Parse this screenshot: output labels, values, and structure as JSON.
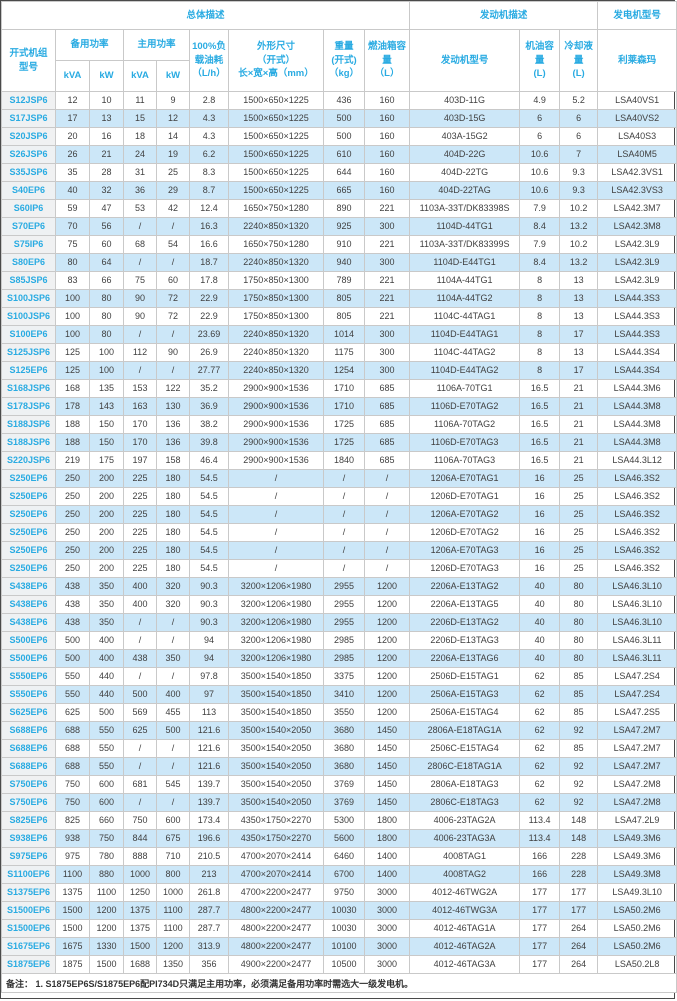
{
  "header": {
    "group_overall": "总体描述",
    "group_engine": "发动机描述",
    "group_alternator": "发电机型号",
    "col_model": [
      "开式机组",
      "型号"
    ],
    "col_standby_power": "备用功率",
    "col_prime_power": "主用功率",
    "unit_kva": "kVA",
    "unit_kw": "kW",
    "col_fuel_consumption": [
      "100%负",
      "载油耗",
      "（L/h）"
    ],
    "col_dimensions": [
      "外形尺寸",
      "（开式）",
      "长×宽×高（mm）"
    ],
    "col_weight": [
      "重量",
      "(开式)",
      "（kg）"
    ],
    "col_fuel_tank": [
      "燃油箱容",
      "量",
      "（L）"
    ],
    "col_engine_model": "发动机型号",
    "col_oil_capacity": [
      "机油容量",
      "(L)"
    ],
    "col_coolant_capacity": [
      "冷却液量",
      "(L)"
    ],
    "col_leroy_somer": "利莱森玛"
  },
  "colors": {
    "accent": "#29abe2",
    "stripe": "#cce7f8",
    "model_col_bg": "#f0f1f2",
    "border": "#c9c9c9"
  },
  "table": {
    "rows": [
      [
        "S12JSP6",
        "12",
        "10",
        "11",
        "9",
        "2.8",
        "1500×650×1225",
        "436",
        "160",
        "403D-11G",
        "4.9",
        "5.2",
        "LSA40VS1"
      ],
      [
        "S17JSP6",
        "17",
        "13",
        "15",
        "12",
        "4.3",
        "1500×650×1225",
        "500",
        "160",
        "403D-15G",
        "6",
        "6",
        "LSA40VS2"
      ],
      [
        "S20JSP6",
        "20",
        "16",
        "18",
        "14",
        "4.3",
        "1500×650×1225",
        "500",
        "160",
        "403A-15G2",
        "6",
        "6",
        "LSA40S3"
      ],
      [
        "S26JSP6",
        "26",
        "21",
        "24",
        "19",
        "6.2",
        "1500×650×1225",
        "610",
        "160",
        "404D-22G",
        "10.6",
        "7",
        "LSA40M5"
      ],
      [
        "S35JSP6",
        "35",
        "28",
        "31",
        "25",
        "8.3",
        "1500×650×1225",
        "644",
        "160",
        "404D-22TG",
        "10.6",
        "9.3",
        "LSA42.3VS1"
      ],
      [
        "S40EP6",
        "40",
        "32",
        "36",
        "29",
        "8.7",
        "1500×650×1225",
        "665",
        "160",
        "404D-22TAG",
        "10.6",
        "9.3",
        "LSA42.3VS3"
      ],
      [
        "S60IP6",
        "59",
        "47",
        "53",
        "42",
        "12.4",
        "1650×750×1280",
        "890",
        "221",
        "1103A-33T/DK83398S",
        "7.9",
        "10.2",
        "LSA42.3M7"
      ],
      [
        "S70EP6",
        "70",
        "56",
        "/",
        "/",
        "16.3",
        "2240×850×1320",
        "925",
        "300",
        "1104D-44TG1",
        "8.4",
        "13.2",
        "LSA42.3M8"
      ],
      [
        "S75IP6",
        "75",
        "60",
        "68",
        "54",
        "16.6",
        "1650×750×1280",
        "910",
        "221",
        "1103A-33T/DK83399S",
        "7.9",
        "10.2",
        "LSA42.3L9"
      ],
      [
        "S80EP6",
        "80",
        "64",
        "/",
        "/",
        "18.7",
        "2240×850×1320",
        "940",
        "300",
        "1104D-E44TG1",
        "8.4",
        "13.2",
        "LSA42.3L9"
      ],
      [
        "S85JSP6",
        "83",
        "66",
        "75",
        "60",
        "17.8",
        "1750×850×1300",
        "789",
        "221",
        "1104A-44TG1",
        "8",
        "13",
        "LSA42.3L9"
      ],
      [
        "S100JSP6",
        "100",
        "80",
        "90",
        "72",
        "22.9",
        "1750×850×1300",
        "805",
        "221",
        "1104A-44TG2",
        "8",
        "13",
        "LSA44.3S3"
      ],
      [
        "S100JSP6",
        "100",
        "80",
        "90",
        "72",
        "22.9",
        "1750×850×1300",
        "805",
        "221",
        "1104C-44TAG1",
        "8",
        "13",
        "LSA44.3S3"
      ],
      [
        "S100EP6",
        "100",
        "80",
        "/",
        "/",
        "23.69",
        "2240×850×1320",
        "1014",
        "300",
        "1104D-E44TAG1",
        "8",
        "17",
        "LSA44.3S3"
      ],
      [
        "S125JSP6",
        "125",
        "100",
        "112",
        "90",
        "26.9",
        "2240×850×1320",
        "1175",
        "300",
        "1104C-44TAG2",
        "8",
        "13",
        "LSA44.3S4"
      ],
      [
        "S125EP6",
        "125",
        "100",
        "/",
        "/",
        "27.77",
        "2240×850×1320",
        "1254",
        "300",
        "1104D-E44TAG2",
        "8",
        "17",
        "LSA44.3S4"
      ],
      [
        "S168JSP6",
        "168",
        "135",
        "153",
        "122",
        "35.2",
        "2900×900×1536",
        "1710",
        "685",
        "1106A-70TG1",
        "16.5",
        "21",
        "LSA44.3M6"
      ],
      [
        "S178JSP6",
        "178",
        "143",
        "163",
        "130",
        "36.9",
        "2900×900×1536",
        "1710",
        "685",
        "1106D-E70TAG2",
        "16.5",
        "21",
        "LSA44.3M8"
      ],
      [
        "S188JSP6",
        "188",
        "150",
        "170",
        "136",
        "38.2",
        "2900×900×1536",
        "1725",
        "685",
        "1106A-70TAG2",
        "16.5",
        "21",
        "LSA44.3M8"
      ],
      [
        "S188JSP6",
        "188",
        "150",
        "170",
        "136",
        "39.8",
        "2900×900×1536",
        "1725",
        "685",
        "1106D-E70TAG3",
        "16.5",
        "21",
        "LSA44.3M8"
      ],
      [
        "S220JSP6",
        "219",
        "175",
        "197",
        "158",
        "46.4",
        "2900×900×1536",
        "1840",
        "685",
        "1106A-70TAG3",
        "16.5",
        "21",
        "LSA44.3L12"
      ],
      [
        "S250EP6",
        "250",
        "200",
        "225",
        "180",
        "54.5",
        "/",
        "/",
        "/",
        "1206A-E70TAG1",
        "16",
        "25",
        "LSA46.3S2"
      ],
      [
        "S250EP6",
        "250",
        "200",
        "225",
        "180",
        "54.5",
        "/",
        "/",
        "/",
        "1206D-E70TAG1",
        "16",
        "25",
        "LSA46.3S2"
      ],
      [
        "S250EP6",
        "250",
        "200",
        "225",
        "180",
        "54.5",
        "/",
        "/",
        "/",
        "1206A-E70TAG2",
        "16",
        "25",
        "LSA46.3S2"
      ],
      [
        "S250EP6",
        "250",
        "200",
        "225",
        "180",
        "54.5",
        "/",
        "/",
        "/",
        "1206D-E70TAG2",
        "16",
        "25",
        "LSA46.3S2"
      ],
      [
        "S250EP6",
        "250",
        "200",
        "225",
        "180",
        "54.5",
        "/",
        "/",
        "/",
        "1206A-E70TAG3",
        "16",
        "25",
        "LSA46.3S2"
      ],
      [
        "S250EP6",
        "250",
        "200",
        "225",
        "180",
        "54.5",
        "/",
        "/",
        "/",
        "1206D-E70TAG3",
        "16",
        "25",
        "LSA46.3S2"
      ],
      [
        "S438EP6",
        "438",
        "350",
        "400",
        "320",
        "90.3",
        "3200×1206×1980",
        "2955",
        "1200",
        "2206A-E13TAG2",
        "40",
        "80",
        "LSA46.3L10"
      ],
      [
        "S438EP6",
        "438",
        "350",
        "400",
        "320",
        "90.3",
        "3200×1206×1980",
        "2955",
        "1200",
        "2206A-E13TAG5",
        "40",
        "80",
        "LSA46.3L10"
      ],
      [
        "S438EP6",
        "438",
        "350",
        "/",
        "/",
        "90.3",
        "3200×1206×1980",
        "2955",
        "1200",
        "2206D-E13TAG2",
        "40",
        "80",
        "LSA46.3L10"
      ],
      [
        "S500EP6",
        "500",
        "400",
        "/",
        "/",
        "94",
        "3200×1206×1980",
        "2985",
        "1200",
        "2206D-E13TAG3",
        "40",
        "80",
        "LSA46.3L11"
      ],
      [
        "S500EP6",
        "500",
        "400",
        "438",
        "350",
        "94",
        "3200×1206×1980",
        "2985",
        "1200",
        "2206A-E13TAG6",
        "40",
        "80",
        "LSA46.3L11"
      ],
      [
        "S550EP6",
        "550",
        "440",
        "/",
        "/",
        "97.8",
        "3500×1540×1850",
        "3375",
        "1200",
        "2506D-E15TAG1",
        "62",
        "85",
        "LSA47.2S4"
      ],
      [
        "S550EP6",
        "550",
        "440",
        "500",
        "400",
        "97",
        "3500×1540×1850",
        "3410",
        "1200",
        "2506A-E15TAG3",
        "62",
        "85",
        "LSA47.2S4"
      ],
      [
        "S625EP6",
        "625",
        "500",
        "569",
        "455",
        "113",
        "3500×1540×1850",
        "3550",
        "1200",
        "2506A-E15TAG4",
        "62",
        "85",
        "LSA47.2S5"
      ],
      [
        "S688EP6",
        "688",
        "550",
        "625",
        "500",
        "121.6",
        "3500×1540×2050",
        "3680",
        "1450",
        "2806A-E18TAG1A",
        "62",
        "92",
        "LSA47.2M7"
      ],
      [
        "S688EP6",
        "688",
        "550",
        "/",
        "/",
        "121.6",
        "3500×1540×2050",
        "3680",
        "1450",
        "2506C-E15TAG4",
        "62",
        "85",
        "LSA47.2M7"
      ],
      [
        "S688EP6",
        "688",
        "550",
        "/",
        "/",
        "121.6",
        "3500×1540×2050",
        "3680",
        "1450",
        "2806C-E18TAG1A",
        "62",
        "92",
        "LSA47.2M7"
      ],
      [
        "S750EP6",
        "750",
        "600",
        "681",
        "545",
        "139.7",
        "3500×1540×2050",
        "3769",
        "1450",
        "2806A-E18TAG3",
        "62",
        "92",
        "LSA47.2M8"
      ],
      [
        "S750EP6",
        "750",
        "600",
        "/",
        "/",
        "139.7",
        "3500×1540×2050",
        "3769",
        "1450",
        "2806C-E18TAG3",
        "62",
        "92",
        "LSA47.2M8"
      ],
      [
        "S825EP6",
        "825",
        "660",
        "750",
        "600",
        "173.4",
        "4350×1750×2270",
        "5300",
        "1800",
        "4006-23TAG2A",
        "113.4",
        "148",
        "LSA47.2L9"
      ],
      [
        "S938EP6",
        "938",
        "750",
        "844",
        "675",
        "196.6",
        "4350×1750×2270",
        "5600",
        "1800",
        "4006-23TAG3A",
        "113.4",
        "148",
        "LSA49.3M6"
      ],
      [
        "S975EP6",
        "975",
        "780",
        "888",
        "710",
        "210.5",
        "4700×2070×2414",
        "6460",
        "1400",
        "4008TAG1",
        "166",
        "228",
        "LSA49.3M6"
      ],
      [
        "S1100EP6",
        "1100",
        "880",
        "1000",
        "800",
        "213",
        "4700×2070×2414",
        "6700",
        "1400",
        "4008TAG2",
        "166",
        "228",
        "LSA49.3M8"
      ],
      [
        "S1375EP6",
        "1375",
        "1100",
        "1250",
        "1000",
        "261.8",
        "4700×2200×2477",
        "9750",
        "3000",
        "4012-46TWG2A",
        "177",
        "177",
        "LSA49.3L10"
      ],
      [
        "S1500EP6",
        "1500",
        "1200",
        "1375",
        "1100",
        "287.7",
        "4800×2200×2477",
        "10030",
        "3000",
        "4012-46TWG3A",
        "177",
        "177",
        "LSA50.2M6"
      ],
      [
        "S1500EP6",
        "1500",
        "1200",
        "1375",
        "1100",
        "287.7",
        "4800×2200×2477",
        "10030",
        "3000",
        "4012-46TAG1A",
        "177",
        "264",
        "LSA50.2M6"
      ],
      [
        "S1675EP6",
        "1675",
        "1330",
        "1500",
        "1200",
        "313.9",
        "4800×2200×2477",
        "10100",
        "3000",
        "4012-46TAG2A",
        "177",
        "264",
        "LSA50.2M6"
      ],
      [
        "S1875EP6",
        "1875",
        "1500",
        "1688",
        "1350",
        "356",
        "4900×2200×2477",
        "10500",
        "3000",
        "4012-46TAG3A",
        "177",
        "264",
        "LSA50.2L8"
      ]
    ]
  },
  "footnote": "备注：  1. S1875EP6S/S1875EP6配PI734D只满足主用功率，必须满足备用功率时需选大一级发电机。"
}
